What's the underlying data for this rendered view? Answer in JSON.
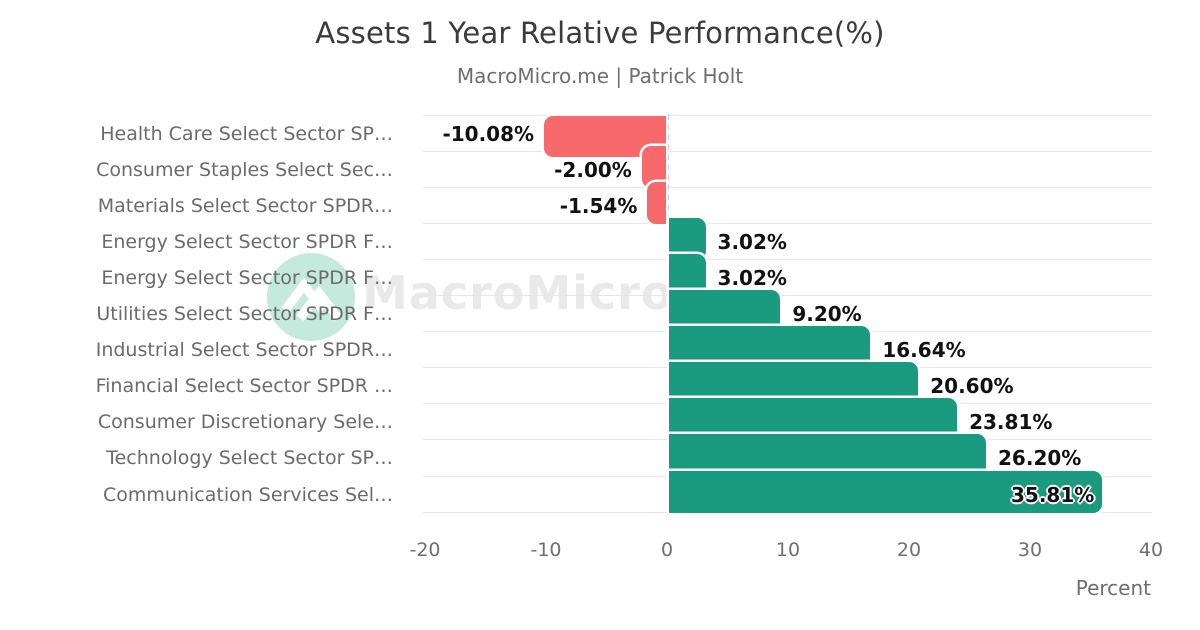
{
  "title": "Assets 1 Year Relative Performance(%)",
  "subtitle": "MacroMicro.me | Patrick Holt",
  "watermark": {
    "text": "MacroMicro",
    "logo_icon": "mountain-m-logo"
  },
  "x_axis": {
    "label": "Percent"
  },
  "colors": {
    "positive_bar": "#1a9a7e",
    "negative_bar": "#f7696b",
    "gridline": "#e6e6e6",
    "zero_line": "#9f9f9f",
    "title_text": "#3b3b3b",
    "muted_text": "#6f6f6f",
    "value_text": "#111111",
    "watermark_text": "#e9e9e9",
    "watermark_circle": "#c4eadd"
  },
  "chart_data": {
    "type": "bar",
    "orientation": "horizontal",
    "title": "Assets 1 Year Relative Performance(%)",
    "subtitle": "MacroMicro.me | Patrick Holt",
    "xlabel": "Percent",
    "xlim": [
      -20,
      40
    ],
    "x_ticks": [
      -20,
      -10,
      0,
      10,
      20,
      30,
      40
    ],
    "grid": "horizontal-row-separators",
    "legend": "none",
    "categories": [
      "Health Care Select Sector SP…",
      "Consumer Staples Select Sec…",
      "Materials Select Sector SPDR…",
      "Energy Select Sector SPDR F…",
      "Energy Select Sector SPDR F…",
      "Utilities Select Sector SPDR F…",
      "Industrial Select Sector SPDR…",
      "Financial Select Sector SPDR …",
      "Consumer Discretionary Sele…",
      "Technology Select Sector SP…",
      "Communication Services Sel…"
    ],
    "values": [
      -10.08,
      -2.0,
      -1.54,
      3.02,
      3.02,
      9.2,
      16.64,
      20.6,
      23.81,
      26.2,
      35.81
    ],
    "value_labels": [
      "-10.08%",
      "-2.00%",
      "-1.54%",
      "3.02%",
      "3.02%",
      "9.20%",
      "16.64%",
      "20.60%",
      "23.81%",
      "26.20%",
      "35.81%"
    ]
  }
}
